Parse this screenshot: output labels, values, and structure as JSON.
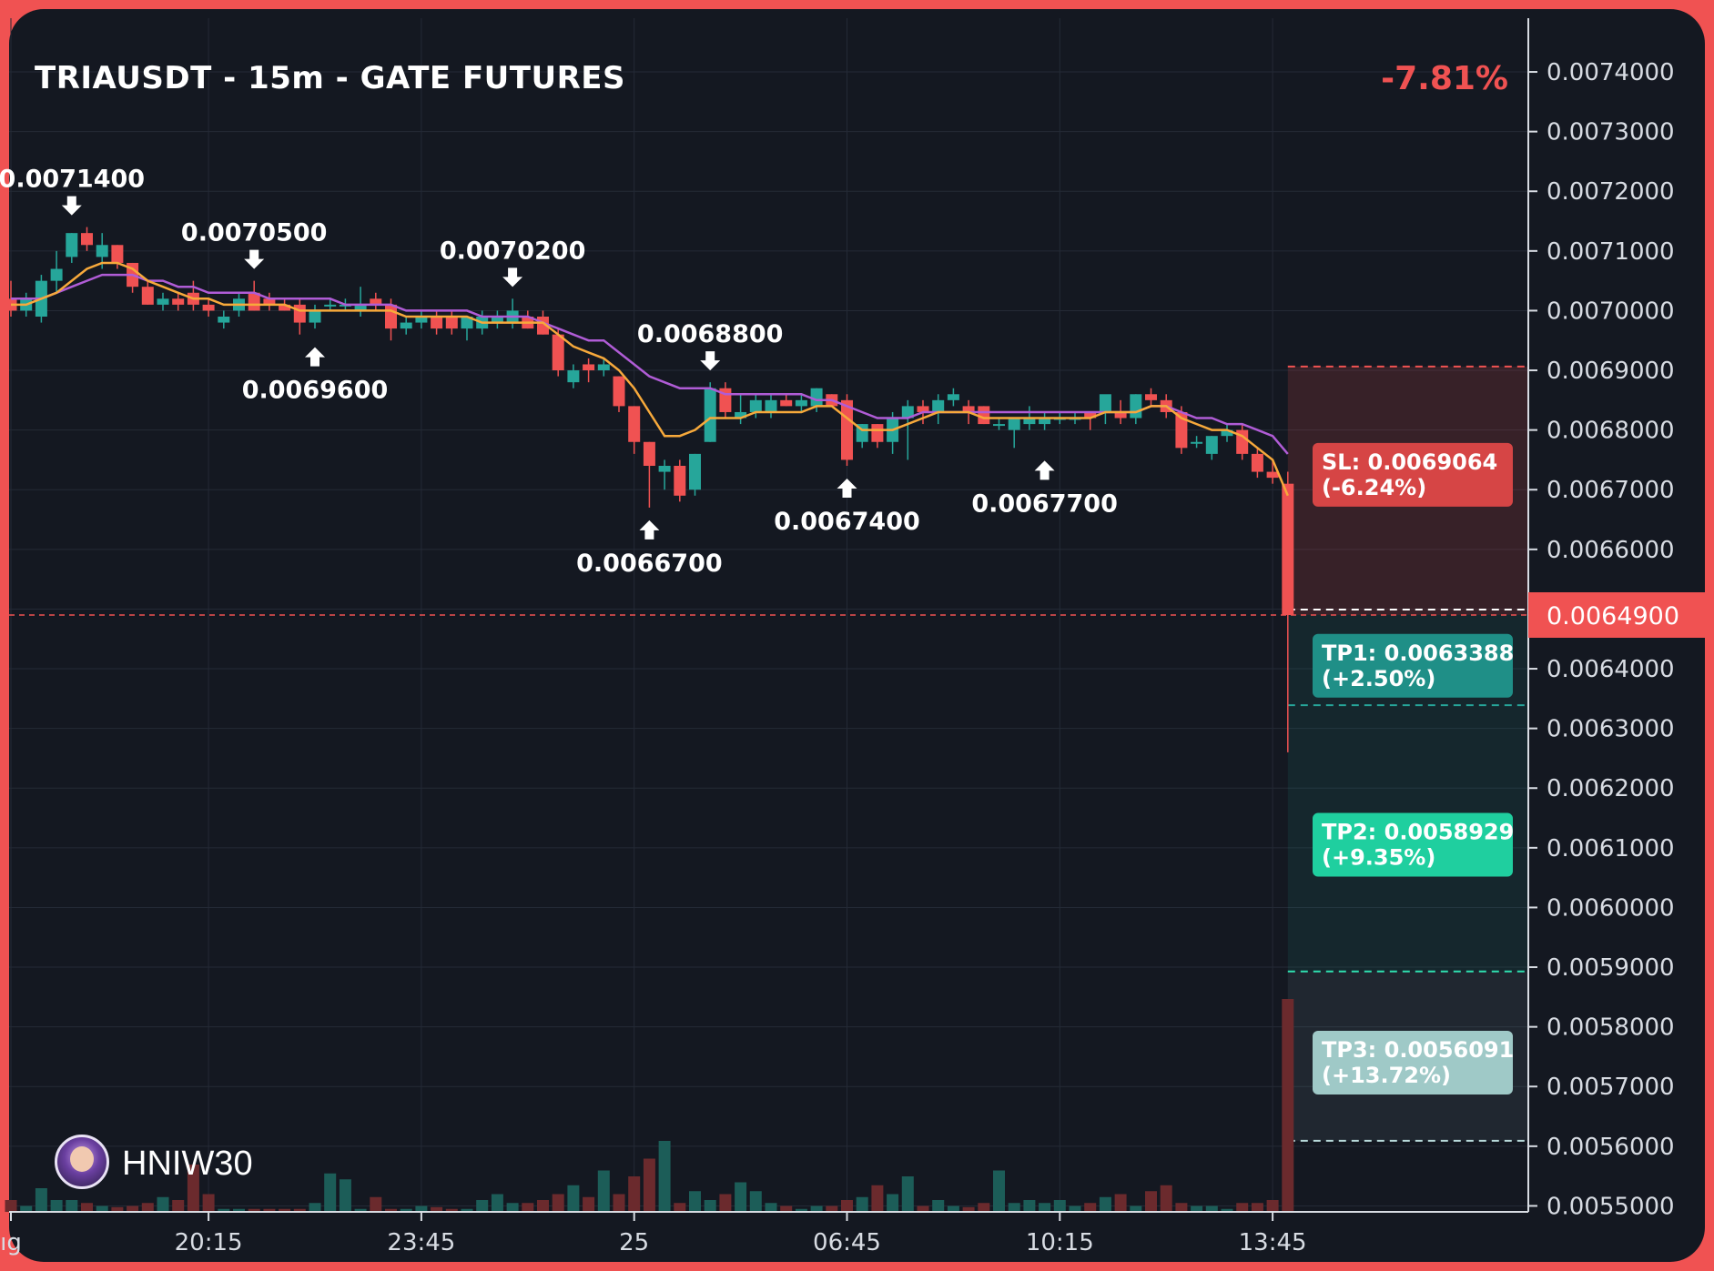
{
  "header": {
    "title": "TRIAUSDT - 15m - GATE FUTURES",
    "change": "-7.81%"
  },
  "branding": {
    "handle": "HNIW30",
    "avatar_icon": "avatar-icon"
  },
  "colors": {
    "up": "#26a69a",
    "down": "#f05252",
    "ema_fast": "#f7a93b",
    "ema_slow": "#b05cd6",
    "tp1": "#1f8f87",
    "tp2": "#1fcf9f",
    "tp3": "#9fc9c7",
    "sl": "#d64545"
  },
  "chart_data": {
    "type": "candlestick",
    "ylim": [
      0.00549,
      0.00749
    ],
    "y_ticks": [
      "0.0074000",
      "0.0073000",
      "0.0072000",
      "0.0071000",
      "0.0070000",
      "0.0069000",
      "0.0068000",
      "0.0067000",
      "0.0066000",
      "0.0065000",
      "0.0064000",
      "0.0063000",
      "0.0062000",
      "0.0061000",
      "0.0060000",
      "0.0059000",
      "0.0058000",
      "0.0057000",
      "0.0056000",
      "0.0055000"
    ],
    "x_ticks": [
      {
        "label": "ıg",
        "bar": 0
      },
      {
        "label": "20:15",
        "bar": 13
      },
      {
        "label": "23:45",
        "bar": 27
      },
      {
        "label": "25",
        "bar": 41
      },
      {
        "label": "06:45",
        "bar": 55
      },
      {
        "label": "10:15",
        "bar": 69
      },
      {
        "label": "13:45",
        "bar": 83
      }
    ],
    "current_price": "0.0064900",
    "current_price_value": 0.00649,
    "candles": [
      [
        0.00702,
        0.00705,
        0.00699,
        0.007
      ],
      [
        0.007,
        0.00703,
        0.00699,
        0.00702
      ],
      [
        0.00699,
        0.00706,
        0.00698,
        0.00705
      ],
      [
        0.00705,
        0.0071,
        0.00703,
        0.00707
      ],
      [
        0.00709,
        0.00713,
        0.00708,
        0.00713
      ],
      [
        0.00713,
        0.00714,
        0.0071,
        0.00711
      ],
      [
        0.00709,
        0.00713,
        0.00707,
        0.00711
      ],
      [
        0.00711,
        0.00711,
        0.00707,
        0.00708
      ],
      [
        0.00708,
        0.00708,
        0.00703,
        0.00704
      ],
      [
        0.00704,
        0.00705,
        0.00701,
        0.00701
      ],
      [
        0.00701,
        0.00703,
        0.007,
        0.00702
      ],
      [
        0.00702,
        0.00703,
        0.007,
        0.00701
      ],
      [
        0.00703,
        0.00705,
        0.007,
        0.00701
      ],
      [
        0.00701,
        0.00702,
        0.00699,
        0.007
      ],
      [
        0.00698,
        0.007,
        0.00697,
        0.00699
      ],
      [
        0.007,
        0.00703,
        0.00699,
        0.00702
      ],
      [
        0.00703,
        0.00705,
        0.007,
        0.007
      ],
      [
        0.00702,
        0.00703,
        0.007,
        0.00701
      ],
      [
        0.00701,
        0.00702,
        0.007,
        0.007
      ],
      [
        0.00701,
        0.00702,
        0.00696,
        0.00698
      ],
      [
        0.00698,
        0.00701,
        0.00697,
        0.007
      ],
      [
        0.00701,
        0.00702,
        0.007,
        0.00701
      ],
      [
        0.00701,
        0.00702,
        0.007,
        0.00701
      ],
      [
        0.007,
        0.00704,
        0.00699,
        0.00701
      ],
      [
        0.00702,
        0.00703,
        0.007,
        0.00701
      ],
      [
        0.00701,
        0.00702,
        0.00695,
        0.00697
      ],
      [
        0.00697,
        0.00699,
        0.00696,
        0.00698
      ],
      [
        0.00698,
        0.007,
        0.00697,
        0.00699
      ],
      [
        0.00699,
        0.007,
        0.00696,
        0.00697
      ],
      [
        0.00699,
        0.007,
        0.00696,
        0.00697
      ],
      [
        0.00697,
        0.00699,
        0.00695,
        0.00699
      ],
      [
        0.00697,
        0.007,
        0.00696,
        0.00699
      ],
      [
        0.00698,
        0.007,
        0.00697,
        0.00699
      ],
      [
        0.00698,
        0.00702,
        0.00697,
        0.007
      ],
      [
        0.00699,
        0.007,
        0.00697,
        0.00697
      ],
      [
        0.00699,
        0.007,
        0.00696,
        0.00696
      ],
      [
        0.00696,
        0.00697,
        0.00689,
        0.0069
      ],
      [
        0.00688,
        0.00691,
        0.00687,
        0.0069
      ],
      [
        0.00691,
        0.00692,
        0.00688,
        0.0069
      ],
      [
        0.0069,
        0.00692,
        0.00689,
        0.00691
      ],
      [
        0.00689,
        0.00689,
        0.00683,
        0.00684
      ],
      [
        0.00684,
        0.00684,
        0.00676,
        0.00678
      ],
      [
        0.00678,
        0.00678,
        0.00667,
        0.00674
      ],
      [
        0.00673,
        0.00675,
        0.0067,
        0.00674
      ],
      [
        0.00674,
        0.00675,
        0.00668,
        0.00669
      ],
      [
        0.0067,
        0.00676,
        0.00669,
        0.00676
      ],
      [
        0.00678,
        0.00688,
        0.00678,
        0.00687
      ],
      [
        0.00687,
        0.00688,
        0.00682,
        0.00683
      ],
      [
        0.00682,
        0.00686,
        0.00681,
        0.00683
      ],
      [
        0.00683,
        0.00686,
        0.00682,
        0.00685
      ],
      [
        0.00683,
        0.00686,
        0.00682,
        0.00685
      ],
      [
        0.00685,
        0.00686,
        0.00684,
        0.00684
      ],
      [
        0.00684,
        0.00686,
        0.00683,
        0.00685
      ],
      [
        0.00684,
        0.00687,
        0.00683,
        0.00687
      ],
      [
        0.00686,
        0.00686,
        0.00684,
        0.00684
      ],
      [
        0.00685,
        0.00686,
        0.00674,
        0.00675
      ],
      [
        0.00678,
        0.00681,
        0.00677,
        0.00681
      ],
      [
        0.00681,
        0.00681,
        0.00677,
        0.00678
      ],
      [
        0.00678,
        0.00683,
        0.00676,
        0.00682
      ],
      [
        0.00682,
        0.00685,
        0.00675,
        0.00684
      ],
      [
        0.00684,
        0.00685,
        0.00681,
        0.00683
      ],
      [
        0.00683,
        0.00686,
        0.00681,
        0.00685
      ],
      [
        0.00685,
        0.00687,
        0.00684,
        0.00686
      ],
      [
        0.00684,
        0.00685,
        0.00681,
        0.00683
      ],
      [
        0.00684,
        0.00684,
        0.00681,
        0.00681
      ],
      [
        0.00681,
        0.00682,
        0.0068,
        0.00681
      ],
      [
        0.0068,
        0.00682,
        0.00677,
        0.00682
      ],
      [
        0.00681,
        0.00684,
        0.0068,
        0.00682
      ],
      [
        0.00681,
        0.00683,
        0.0068,
        0.00682
      ],
      [
        0.00682,
        0.00683,
        0.00681,
        0.00682
      ],
      [
        0.00682,
        0.00683,
        0.00681,
        0.00682
      ],
      [
        0.00683,
        0.00683,
        0.0068,
        0.00682
      ],
      [
        0.00683,
        0.00685,
        0.00681,
        0.00686
      ],
      [
        0.00683,
        0.00685,
        0.00681,
        0.00682
      ],
      [
        0.00682,
        0.00686,
        0.00681,
        0.00686
      ],
      [
        0.00686,
        0.00687,
        0.00684,
        0.00685
      ],
      [
        0.00685,
        0.00686,
        0.00682,
        0.00683
      ],
      [
        0.00683,
        0.00684,
        0.00676,
        0.00677
      ],
      [
        0.00678,
        0.00679,
        0.00677,
        0.00678
      ],
      [
        0.00676,
        0.00679,
        0.00675,
        0.00679
      ],
      [
        0.00679,
        0.00681,
        0.00678,
        0.0068
      ],
      [
        0.0068,
        0.00681,
        0.00675,
        0.00676
      ],
      [
        0.00676,
        0.00677,
        0.00672,
        0.00673
      ],
      [
        0.00673,
        0.00675,
        0.00671,
        0.00672
      ],
      [
        0.00671,
        0.00673,
        0.00626,
        0.00649
      ]
    ],
    "volume": [
      0.2,
      0.1,
      0.4,
      0.2,
      0.2,
      0.15,
      0.1,
      0.08,
      0.1,
      0.15,
      0.25,
      0.2,
      0.8,
      0.3,
      0.05,
      0.05,
      0.05,
      0.05,
      0.05,
      0.05,
      0.15,
      0.65,
      0.55,
      0.05,
      0.25,
      0.05,
      0.05,
      0.1,
      0.08,
      0.05,
      0.05,
      0.2,
      0.3,
      0.15,
      0.15,
      0.2,
      0.3,
      0.45,
      0.25,
      0.7,
      0.3,
      0.6,
      0.9,
      1.2,
      0.15,
      0.35,
      0.2,
      0.3,
      0.5,
      0.35,
      0.15,
      0.1,
      0.05,
      0.1,
      0.1,
      0.2,
      0.25,
      0.45,
      0.3,
      0.6,
      0.1,
      0.2,
      0.1,
      0.08,
      0.15,
      0.7,
      0.15,
      0.2,
      0.15,
      0.2,
      0.1,
      0.15,
      0.25,
      0.3,
      0.1,
      0.35,
      0.45,
      0.15,
      0.1,
      0.1,
      0.05,
      0.15,
      0.15,
      0.2,
      3.6
    ],
    "ema_fast": [
      0.00701,
      0.00701,
      0.00702,
      0.00703,
      0.00705,
      0.00707,
      0.00708,
      0.00708,
      0.00707,
      0.00705,
      0.00704,
      0.00703,
      0.00702,
      0.00702,
      0.00701,
      0.00701,
      0.00701,
      0.00701,
      0.00701,
      0.007,
      0.007,
      0.007,
      0.007,
      0.007,
      0.007,
      0.007,
      0.00699,
      0.00699,
      0.00699,
      0.00699,
      0.00699,
      0.00698,
      0.00698,
      0.00698,
      0.00698,
      0.00698,
      0.00696,
      0.00694,
      0.00693,
      0.00692,
      0.0069,
      0.00687,
      0.00683,
      0.00679,
      0.00679,
      0.0068,
      0.00682,
      0.00682,
      0.00682,
      0.00683,
      0.00683,
      0.00683,
      0.00683,
      0.00684,
      0.00684,
      0.00682,
      0.0068,
      0.0068,
      0.0068,
      0.00681,
      0.00682,
      0.00683,
      0.00683,
      0.00683,
      0.00682,
      0.00682,
      0.00682,
      0.00682,
      0.00682,
      0.00682,
      0.00682,
      0.00682,
      0.00683,
      0.00683,
      0.00683,
      0.00684,
      0.00684,
      0.00682,
      0.00681,
      0.0068,
      0.0068,
      0.00679,
      0.00677,
      0.00675,
      0.00669
    ],
    "ema_slow": [
      0.00702,
      0.00702,
      0.00702,
      0.00703,
      0.00704,
      0.00705,
      0.00706,
      0.00706,
      0.00706,
      0.00705,
      0.00705,
      0.00704,
      0.00704,
      0.00703,
      0.00703,
      0.00703,
      0.00703,
      0.00702,
      0.00702,
      0.00702,
      0.00702,
      0.00702,
      0.00701,
      0.00701,
      0.00701,
      0.00701,
      0.007,
      0.007,
      0.007,
      0.007,
      0.007,
      0.00699,
      0.00699,
      0.00699,
      0.00699,
      0.00698,
      0.00697,
      0.00696,
      0.00695,
      0.00695,
      0.00693,
      0.00691,
      0.00689,
      0.00688,
      0.00687,
      0.00687,
      0.00687,
      0.00686,
      0.00686,
      0.00686,
      0.00686,
      0.00686,
      0.00686,
      0.00685,
      0.00685,
      0.00684,
      0.00683,
      0.00682,
      0.00682,
      0.00682,
      0.00683,
      0.00683,
      0.00683,
      0.00683,
      0.00683,
      0.00683,
      0.00683,
      0.00683,
      0.00683,
      0.00683,
      0.00683,
      0.00683,
      0.00683,
      0.00683,
      0.00683,
      0.00684,
      0.00684,
      0.00683,
      0.00682,
      0.00682,
      0.00681,
      0.00681,
      0.0068,
      0.00679,
      0.00676
    ],
    "annotations": [
      {
        "text": "0.0071400",
        "bar": 4,
        "price": 0.00714,
        "dir": "high"
      },
      {
        "text": "0.0070500",
        "bar": 16,
        "price": 0.00705,
        "dir": "high"
      },
      {
        "text": "0.0069600",
        "bar": 20,
        "price": 0.00696,
        "dir": "low"
      },
      {
        "text": "0.0070200",
        "bar": 33,
        "price": 0.00702,
        "dir": "high"
      },
      {
        "text": "0.0066700",
        "bar": 42,
        "price": 0.00667,
        "dir": "low"
      },
      {
        "text": "0.0068800",
        "bar": 46,
        "price": 0.00688,
        "dir": "high"
      },
      {
        "text": "0.0067400",
        "bar": 55,
        "price": 0.00674,
        "dir": "low"
      },
      {
        "text": "0.0067700",
        "bar": 68,
        "price": 0.00677,
        "dir": "low"
      }
    ],
    "levels": [
      {
        "kind": "sl",
        "label": "SL: 0.0069064",
        "sub": "(-6.24%)",
        "price": 0.0069064
      },
      {
        "kind": "tp1",
        "label": "TP1: 0.0063388",
        "sub": "(+2.50%)",
        "price": 0.0063388
      },
      {
        "kind": "tp2",
        "label": "TP2: 0.0058929",
        "sub": "(+9.35%)",
        "price": 0.0058929
      },
      {
        "kind": "tp3",
        "label": "TP3: 0.0056091",
        "sub": "(+13.72%)",
        "price": 0.0056091
      }
    ],
    "entry_price": 0.00649,
    "grid": true
  }
}
